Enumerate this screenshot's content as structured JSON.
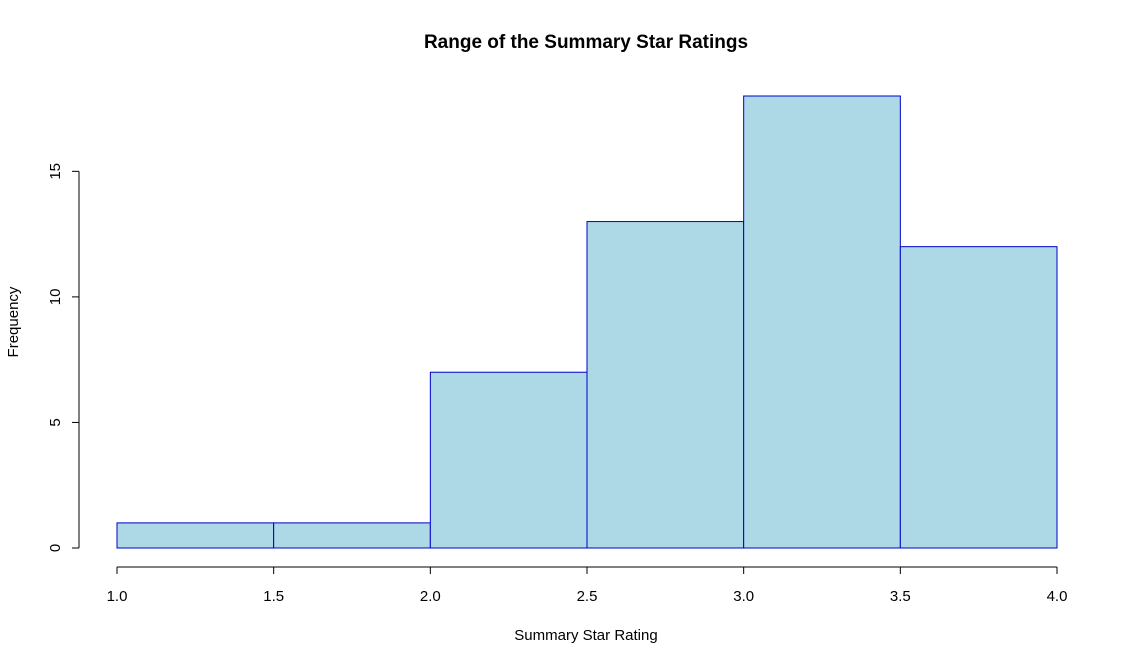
{
  "chart_data": {
    "type": "bar",
    "subtype": "histogram",
    "title": "Range of the Summary Star Ratings",
    "xlabel": "Summary Star Rating",
    "ylabel": "Frequency",
    "bins": [
      {
        "start": 1.0,
        "end": 1.5,
        "count": 1
      },
      {
        "start": 1.5,
        "end": 2.0,
        "count": 1
      },
      {
        "start": 2.0,
        "end": 2.5,
        "count": 7
      },
      {
        "start": 2.5,
        "end": 3.0,
        "count": 13
      },
      {
        "start": 3.0,
        "end": 3.5,
        "count": 18
      },
      {
        "start": 3.5,
        "end": 4.0,
        "count": 12
      }
    ],
    "xlim": [
      1.0,
      4.0
    ],
    "ylim": [
      0,
      18
    ],
    "x_ticks": [
      "1.0",
      "1.5",
      "2.0",
      "2.5",
      "3.0",
      "3.5",
      "4.0"
    ],
    "y_ticks": [
      "0",
      "5",
      "10",
      "15"
    ],
    "grid": false,
    "legend": "none",
    "bar_fill": "#add8e6",
    "bar_border": "#0000cd"
  }
}
